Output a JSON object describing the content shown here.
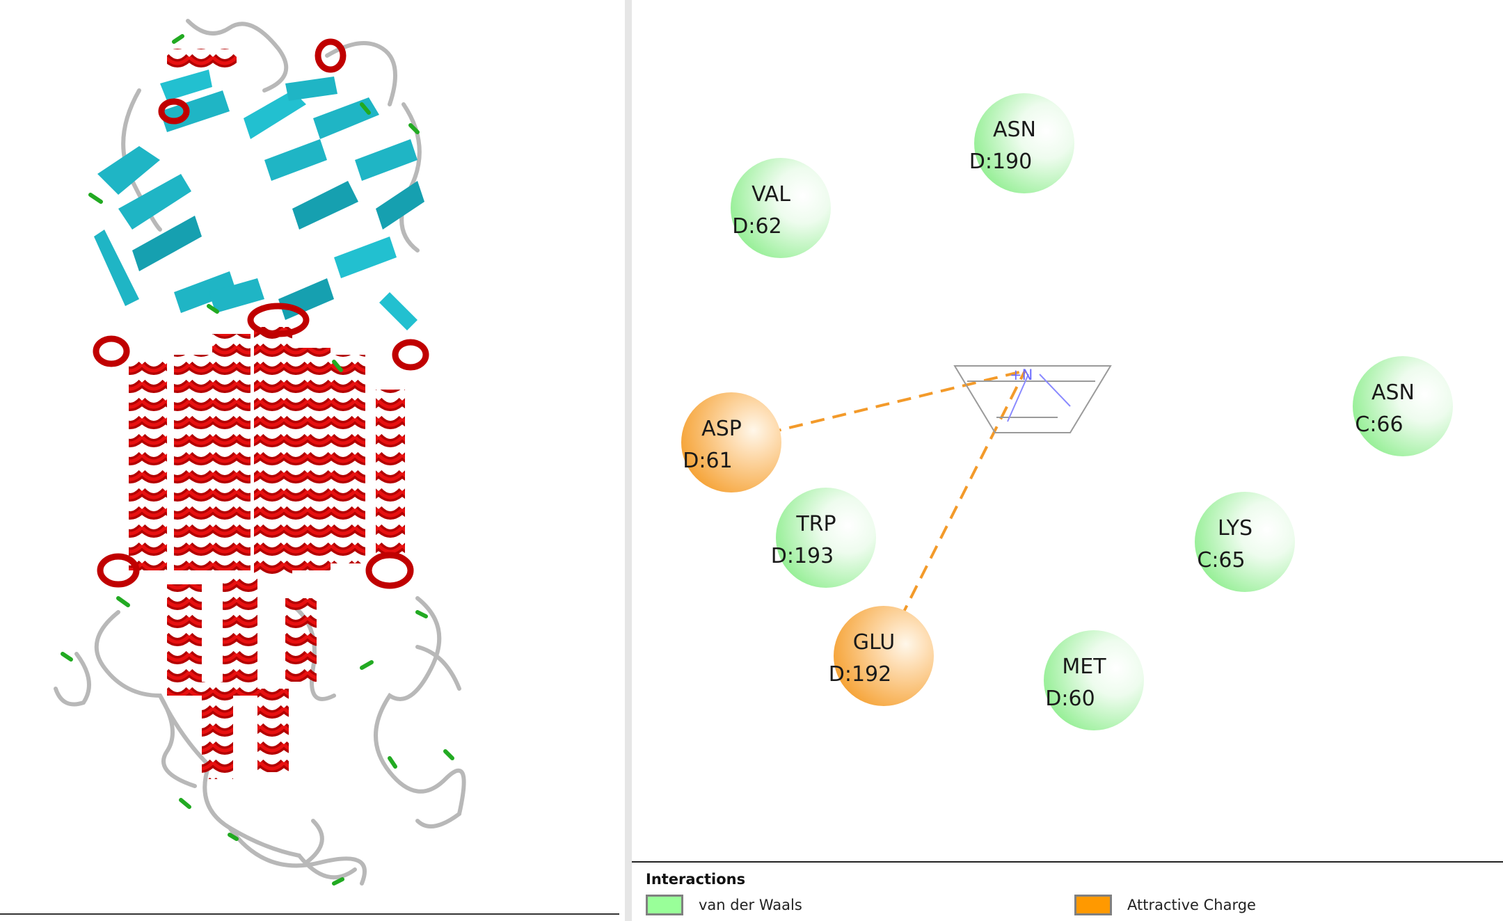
{
  "residues": [
    {
      "name": "ASN",
      "id": "D:190",
      "type": "vdw"
    },
    {
      "name": "VAL",
      "id": "D:62",
      "type": "vdw"
    },
    {
      "name": "ASN",
      "id": "C:66",
      "type": "vdw"
    },
    {
      "name": "ASP",
      "id": "D:61",
      "type": "charge"
    },
    {
      "name": "TRP",
      "id": "D:193",
      "type": "vdw"
    },
    {
      "name": "LYS",
      "id": "C:65",
      "type": "vdw"
    },
    {
      "name": "GLU",
      "id": "D:192",
      "type": "charge"
    },
    {
      "name": "MET",
      "id": "D:60",
      "type": "vdw"
    }
  ],
  "ligand": {
    "charge_label": "+N"
  },
  "legend": {
    "title": "Interactions",
    "items": [
      {
        "label": "van der Waals",
        "color": "#99ff99"
      },
      {
        "label": "Attractive Charge",
        "color": "#ff9900"
      }
    ]
  },
  "colors": {
    "vdw_fill": "#90ee90",
    "charge_fill": "#f5a030",
    "bond_line": "#f39a2a",
    "helix": "#cc0000",
    "sheet": "#1fb5c5",
    "coil": "#b8b8b8",
    "turn": "#22aa22"
  }
}
